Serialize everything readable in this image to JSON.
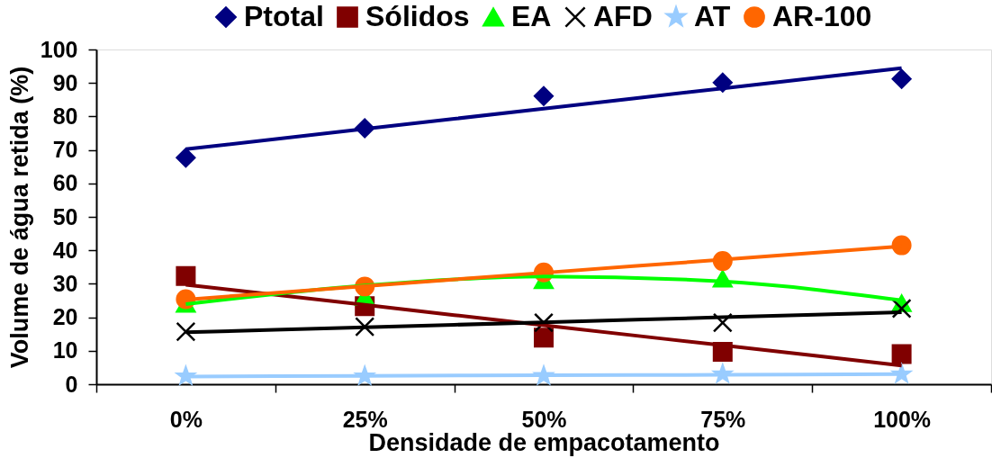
{
  "chart_data": {
    "type": "scatter",
    "xlabel": "Densidade de empacotamento",
    "ylabel": "Volume de água retida (%)",
    "categories": [
      "0%",
      "25%",
      "50%",
      "75%",
      "100%"
    ],
    "ylim": [
      0,
      100
    ],
    "yticks": [
      0,
      10,
      20,
      30,
      40,
      50,
      60,
      70,
      80,
      90,
      100
    ],
    "legend": "top",
    "series": [
      {
        "name": "Ptotal",
        "marker": "diamond",
        "color": "#000080",
        "values": [
          67.7,
          76.5,
          86.1,
          90.1,
          91.2
        ]
      },
      {
        "name": "Sólidos",
        "marker": "square",
        "color": "#800000",
        "values": [
          32.3,
          23.3,
          13.9,
          9.7,
          9.0
        ]
      },
      {
        "name": "EA",
        "marker": "triangle",
        "color": "#00ff00",
        "values": [
          24.0,
          26.0,
          31.0,
          31.5,
          24.2
        ]
      },
      {
        "name": "AFD",
        "marker": "cross",
        "color": "#000000",
        "values": [
          15.7,
          17.2,
          18.4,
          18.4,
          22.6
        ]
      },
      {
        "name": "AT",
        "marker": "star",
        "color": "#99ccff",
        "values": [
          2.4,
          2.4,
          2.5,
          3.0,
          3.0
        ]
      },
      {
        "name": "AR-100",
        "marker": "circle",
        "color": "#ff6600",
        "values": [
          25.4,
          29.2,
          33.4,
          36.8,
          41.5
        ]
      },
      {
        "type": "line",
        "color": "#000080",
        "values": [
          70.2,
          76.3,
          82.3,
          88.4,
          94.4
        ]
      },
      {
        "type": "line",
        "color": "#800000",
        "values": [
          29.7,
          23.7,
          17.6,
          11.6,
          5.6
        ]
      },
      {
        "type": "line",
        "color": "#00ff00",
        "values": [
          23.9,
          29.5,
          32.2,
          30.7,
          25.1
        ]
      },
      {
        "type": "line",
        "color": "#000000",
        "values": [
          15.5,
          17.0,
          18.5,
          20.0,
          21.5
        ]
      },
      {
        "type": "line",
        "color": "#99ccff",
        "values": [
          2.3,
          2.5,
          2.7,
          2.8,
          3.0
        ]
      },
      {
        "type": "line",
        "color": "#ff6600",
        "values": [
          25.3,
          29.3,
          33.3,
          37.2,
          41.2
        ]
      }
    ]
  }
}
